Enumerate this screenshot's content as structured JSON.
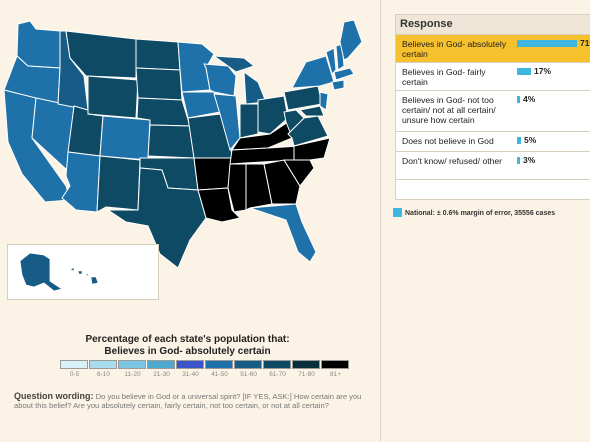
{
  "panel": {
    "header": "Response",
    "rows": [
      {
        "label": "Believes in God- absolutely certain",
        "pct_label": "71%",
        "pct": 71,
        "selected": true
      },
      {
        "label": "Believes in God- fairly certain",
        "pct_label": "17%",
        "pct": 17,
        "selected": false
      },
      {
        "label": "Believes in God- not too certain/ not at all certain/ unsure how certain",
        "pct_label": "4%",
        "pct": 4,
        "selected": false
      },
      {
        "label": "Does not believe in God",
        "pct_label": "5%",
        "pct": 5,
        "selected": false
      },
      {
        "label": "Don't know/ refused/ other",
        "pct_label": "3%",
        "pct": 3,
        "selected": false
      }
    ]
  },
  "national_note": "National: ± 0.6% margin of error, 35556 cases",
  "legend": {
    "title_line1": "Percentage of each state's population that:",
    "title_line2": "Believes in God- absolutely certain",
    "bins": [
      {
        "label": "0-5",
        "color": "#d8f1f8"
      },
      {
        "label": "6-10",
        "color": "#a9dcee"
      },
      {
        "label": "11-20",
        "color": "#79c5e2"
      },
      {
        "label": "21-30",
        "color": "#4fa9cf"
      },
      {
        "label": "31-40",
        "color": "#3a55c8"
      },
      {
        "label": "41-50",
        "color": "#1e72a9"
      },
      {
        "label": "51-60",
        "color": "#175c86"
      },
      {
        "label": "61-70",
        "color": "#0e4a64"
      },
      {
        "label": "71-80",
        "color": "#062e3b"
      },
      {
        "label": "81+",
        "color": "#000000"
      }
    ]
  },
  "question": {
    "label": "Question wording:",
    "text": "Do you believe in God or a universal spirit? [IF YES, ASK:] How certain are you about this belief? Are you absolutely certain, fairly certain, not too certain, or not at all certain?"
  },
  "colors": {
    "bin_61_70": "#0e4a64",
    "bin_71_80": "#062e3b",
    "bin_81_plus": "#000000",
    "bin_51_60": "#175c86",
    "bin_41_50": "#1e72a9",
    "selected_row": "#f5c12c",
    "bar": "#3fb6df"
  }
}
